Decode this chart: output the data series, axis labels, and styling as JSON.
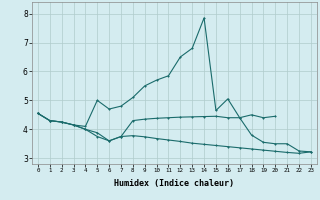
{
  "xlabel": "Humidex (Indice chaleur)",
  "bg_color": "#d4ecf0",
  "line_color": "#1a6b6b",
  "grid_color": "#b0cccc",
  "ylim": [
    2.8,
    8.4
  ],
  "xlim": [
    -0.5,
    23.5
  ],
  "yticks": [
    3,
    4,
    5,
    6,
    7,
    8
  ],
  "xticks": [
    0,
    1,
    2,
    3,
    4,
    5,
    6,
    7,
    8,
    9,
    10,
    11,
    12,
    13,
    14,
    15,
    16,
    17,
    18,
    19,
    20,
    21,
    22,
    23
  ],
  "line1_x": [
    0,
    1,
    2,
    3,
    4,
    5,
    6,
    7,
    8,
    9,
    10,
    11,
    12,
    13,
    14,
    15,
    16,
    17,
    18,
    19,
    20
  ],
  "line1_y": [
    4.55,
    4.3,
    4.25,
    4.15,
    4.1,
    5.0,
    4.7,
    4.8,
    5.1,
    5.5,
    5.7,
    5.85,
    6.5,
    6.8,
    7.85,
    4.65,
    5.05,
    4.4,
    4.5,
    4.4,
    4.45
  ],
  "line2_x": [
    0,
    1,
    2,
    3,
    4,
    5,
    6,
    7,
    8,
    9,
    10,
    11,
    12,
    13,
    14,
    15,
    16,
    17,
    18,
    19,
    20,
    21,
    22,
    23
  ],
  "line2_y": [
    4.55,
    4.3,
    4.25,
    4.15,
    4.0,
    3.75,
    3.6,
    3.75,
    4.3,
    4.35,
    4.38,
    4.4,
    4.42,
    4.43,
    4.44,
    4.45,
    4.4,
    4.4,
    3.8,
    3.55,
    3.5,
    3.5,
    3.25,
    3.22
  ],
  "line3_x": [
    0,
    1,
    2,
    3,
    4,
    5,
    6,
    7,
    8,
    9,
    10,
    11,
    12,
    13,
    14,
    15,
    16,
    17,
    18,
    19,
    20,
    21,
    22,
    23
  ],
  "line3_y": [
    4.55,
    4.3,
    4.25,
    4.15,
    4.0,
    3.88,
    3.6,
    3.75,
    3.78,
    3.74,
    3.68,
    3.63,
    3.58,
    3.52,
    3.48,
    3.44,
    3.4,
    3.36,
    3.32,
    3.28,
    3.24,
    3.2,
    3.17,
    3.22
  ]
}
